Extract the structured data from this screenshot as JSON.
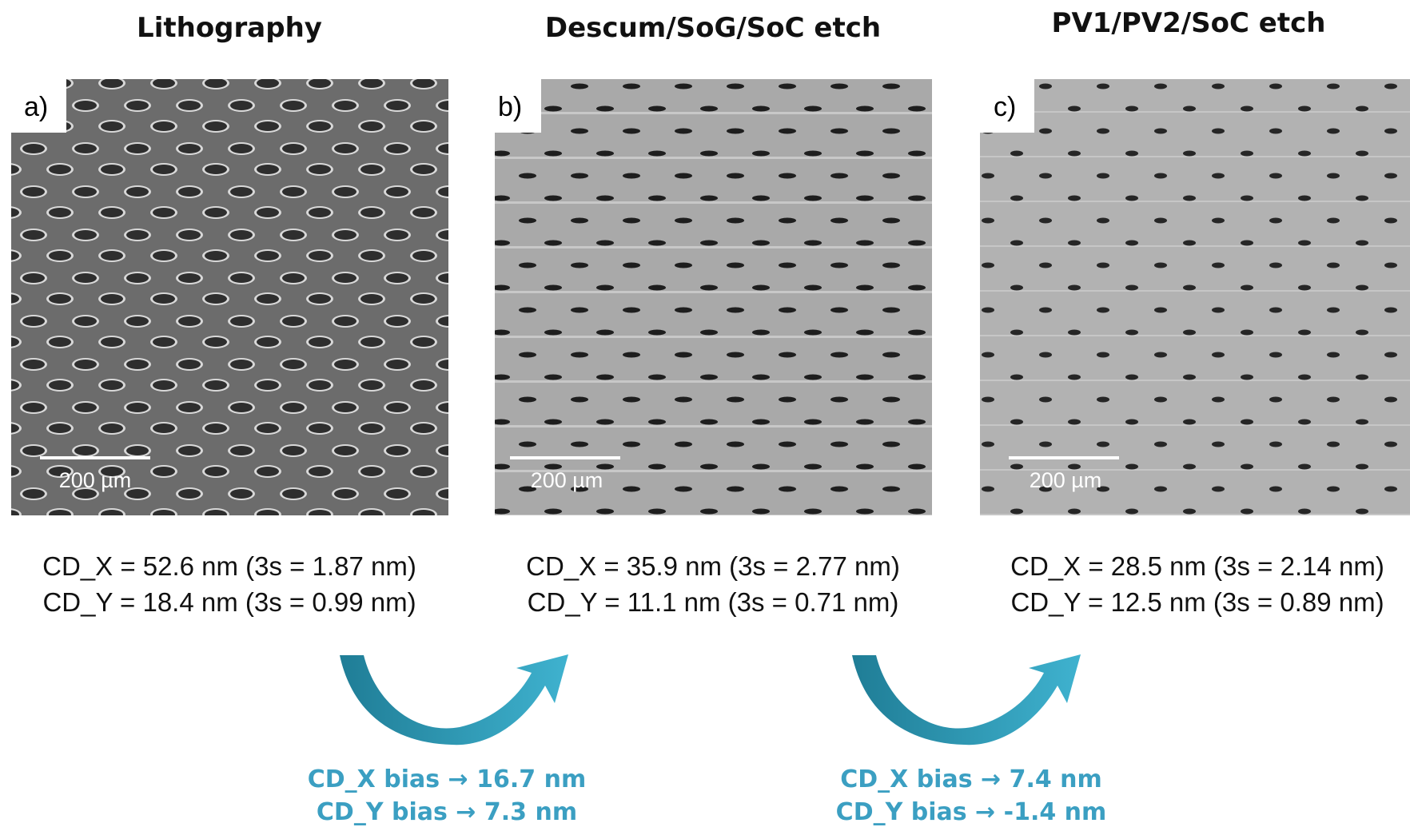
{
  "panels": [
    {
      "title": "Lithography",
      "label": "a)",
      "scale_bar": "200 µm",
      "stats": [
        "CD_X = 52.6 nm (3s = 1.87 nm)",
        "CD_Y = 18.4 nm (3s = 0.99 nm)"
      ]
    },
    {
      "title": "Descum/SoG/SoC etch",
      "label": "b)",
      "scale_bar": "200 µm",
      "stats": [
        "CD_X = 35.9 nm (3s = 2.77 nm)",
        "CD_Y = 11.1 nm (3s = 0.71 nm)"
      ]
    },
    {
      "title": "PV1/PV2/SoC etch",
      "label": "c)",
      "scale_bar": "200 µm",
      "stats": [
        "CD_X = 28.5 nm (3s = 2.14 nm)",
        "CD_Y = 12.5 nm (3s = 0.89 nm)"
      ]
    }
  ],
  "transitions": [
    {
      "lines": [
        "CD_X bias → 16.7 nm",
        "CD_Y bias → 7.3 nm"
      ]
    },
    {
      "lines": [
        "CD_X bias → 7.4 nm",
        "CD_Y bias → -1.4 nm"
      ]
    }
  ]
}
